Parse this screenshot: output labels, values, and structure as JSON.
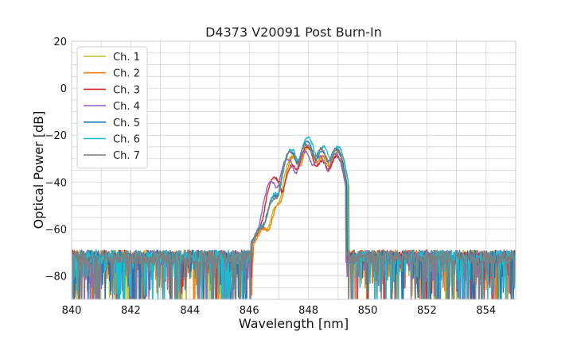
{
  "chart_data": {
    "type": "line",
    "title": "D4373 V20091 Post Burn-In",
    "xlabel": "Wavelength [nm]",
    "ylabel": "Optical Power [dB]",
    "xlim": [
      840,
      855
    ],
    "ylim": [
      -90,
      20
    ],
    "xticks": [
      840,
      842,
      844,
      846,
      848,
      850,
      852,
      854
    ],
    "yticks": [
      -80,
      -60,
      -40,
      -20,
      0,
      20
    ],
    "grid": true,
    "legend_position": "top-left",
    "noise_floor_db": -72,
    "series": [
      {
        "name": "Ch. 1",
        "color": "#bcbd22",
        "peaks": [
          [
            846.45,
            -61
          ],
          [
            846.95,
            -50
          ],
          [
            847.45,
            -29
          ],
          [
            847.97,
            -25
          ],
          [
            848.45,
            -29
          ],
          [
            848.97,
            -27
          ]
        ]
      },
      {
        "name": "Ch. 2",
        "color": "#ff7f0e",
        "peaks": [
          [
            846.5,
            -61
          ],
          [
            847.0,
            -50
          ],
          [
            847.5,
            -29
          ],
          [
            848.02,
            -25
          ],
          [
            848.5,
            -29
          ],
          [
            849.02,
            -27
          ]
        ]
      },
      {
        "name": "Ch. 3",
        "color": "#d62728",
        "peaks": [
          [
            846.45,
            -60
          ],
          [
            846.85,
            -38
          ],
          [
            847.45,
            -33
          ],
          [
            847.95,
            -25
          ],
          [
            848.45,
            -31
          ],
          [
            848.95,
            -29
          ]
        ]
      },
      {
        "name": "Ch. 4",
        "color": "#9467bd",
        "peaks": [
          [
            846.4,
            -61
          ],
          [
            846.75,
            -40
          ],
          [
            847.3,
            -30
          ],
          [
            847.88,
            -27
          ],
          [
            848.38,
            -29
          ],
          [
            848.92,
            -28
          ]
        ]
      },
      {
        "name": "Ch. 5",
        "color": "#1f77b4",
        "peaks": [
          [
            846.4,
            -60
          ],
          [
            846.85,
            -46
          ],
          [
            847.4,
            -27
          ],
          [
            847.95,
            -23
          ],
          [
            848.45,
            -27
          ],
          [
            848.95,
            -26
          ]
        ]
      },
      {
        "name": "Ch. 6",
        "color": "#17becf",
        "peaks": [
          [
            846.42,
            -60
          ],
          [
            846.88,
            -45
          ],
          [
            847.42,
            -26
          ],
          [
            847.98,
            -21
          ],
          [
            848.5,
            -25
          ],
          [
            849.0,
            -25
          ]
        ]
      },
      {
        "name": "Ch. 7",
        "color": "#7f7f7f",
        "peaks": [
          [
            846.4,
            -61
          ],
          [
            846.85,
            -47
          ],
          [
            847.38,
            -27
          ],
          [
            847.93,
            -24
          ],
          [
            848.42,
            -26
          ],
          [
            848.92,
            -26
          ]
        ]
      }
    ]
  }
}
